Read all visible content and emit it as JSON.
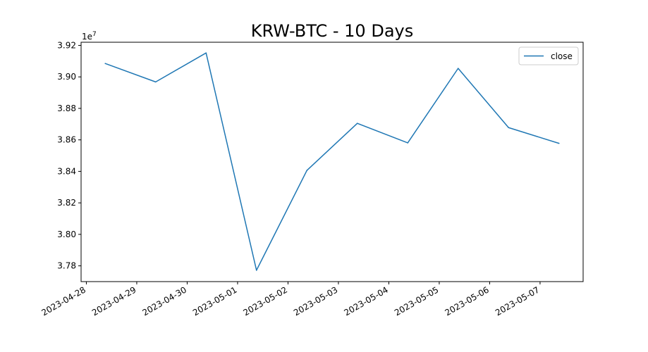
{
  "chart_data": {
    "type": "line",
    "title": "KRW-BTC - 10 Days",
    "xlabel": "",
    "ylabel": "",
    "y_offset_label": "1e7",
    "x": [
      "2023-04-28 09:00",
      "2023-04-29 09:00",
      "2023-04-30 09:00",
      "2023-05-01 09:00",
      "2023-05-02 09:00",
      "2023-05-03 09:00",
      "2023-05-04 09:00",
      "2023-05-05 09:00",
      "2023-05-06 09:00",
      "2023-05-07 09:00"
    ],
    "x_ticks": [
      "2023-04-28",
      "2023-04-29",
      "2023-04-30",
      "2023-05-01",
      "2023-05-02",
      "2023-05-03",
      "2023-05-04",
      "2023-05-05",
      "2023-05-06",
      "2023-05-07"
    ],
    "y_ticks": [
      "3.78",
      "3.80",
      "3.82",
      "3.84",
      "3.86",
      "3.88",
      "3.90",
      "3.92"
    ],
    "y_tick_values": [
      37800000,
      38000000,
      38200000,
      38400000,
      38600000,
      38800000,
      39000000,
      39200000
    ],
    "ylim": [
      37700000,
      39220000
    ],
    "xlim": [
      "2023-04-27 21:30",
      "2023-05-07 20:30"
    ],
    "series": [
      {
        "name": "close",
        "color": "#1f77b4",
        "values": [
          39085000,
          38968000,
          39152000,
          37772000,
          38406000,
          38705000,
          38581000,
          39054000,
          38678000,
          38578000
        ]
      }
    ],
    "legend": {
      "position": "top-right"
    },
    "grid": false
  }
}
